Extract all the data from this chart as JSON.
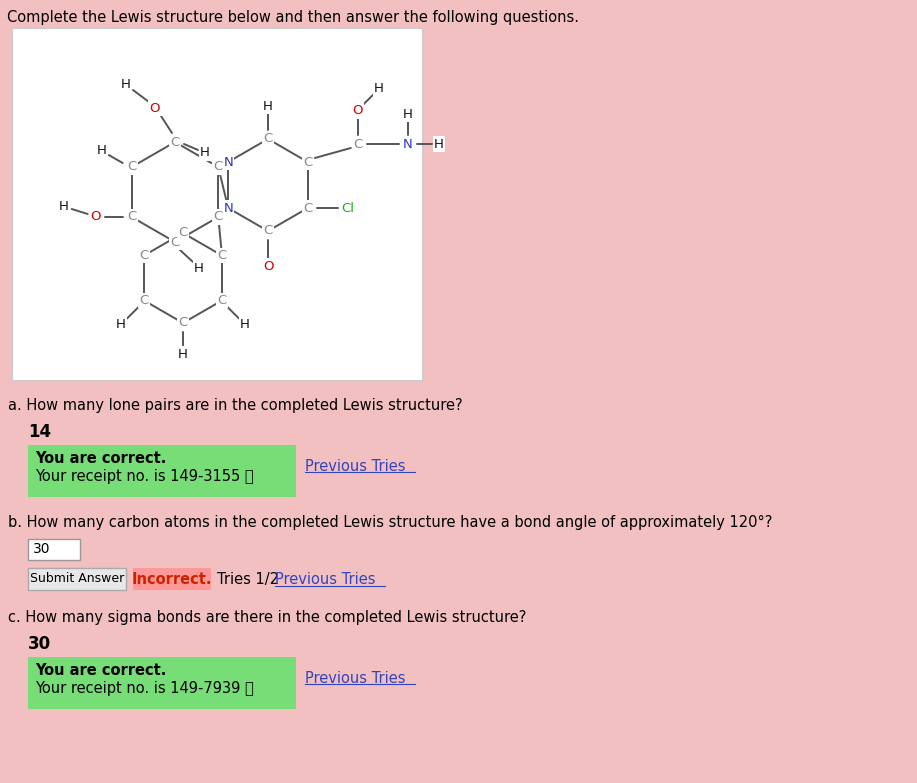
{
  "bg_color": "#f2c0c0",
  "page_title": "Complete the Lewis structure below and then answer the following questions.",
  "molecule_bg": "#ffffff",
  "q_a_label": "a. How many lone pairs are in the completed Lewis structure?",
  "q_a_answer": "14",
  "q_a_receipt": "Your receipt no. is 149-3155 ⓘ",
  "q_b_label": "b. How many carbon atoms in the completed Lewis structure have a bond angle of approximately 120°?",
  "q_b_answer": "30",
  "q_b_tries": "Tries 1/2",
  "q_c_label": "c. How many sigma bonds are there in the completed Lewis structure?",
  "q_c_answer": "30",
  "q_c_receipt": "Your receipt no. is 149-7939 ⓘ",
  "correct_box_color": "#77dd77",
  "incorrect_box_color": "#ff9999",
  "link_color": "#3344bb",
  "incorrect_text_color": "#cc2200",
  "atom_C": "#888888",
  "atom_H": "#111111",
  "atom_N": "#3333cc",
  "atom_O": "#cc0000",
  "atom_Cl": "#22aa22"
}
